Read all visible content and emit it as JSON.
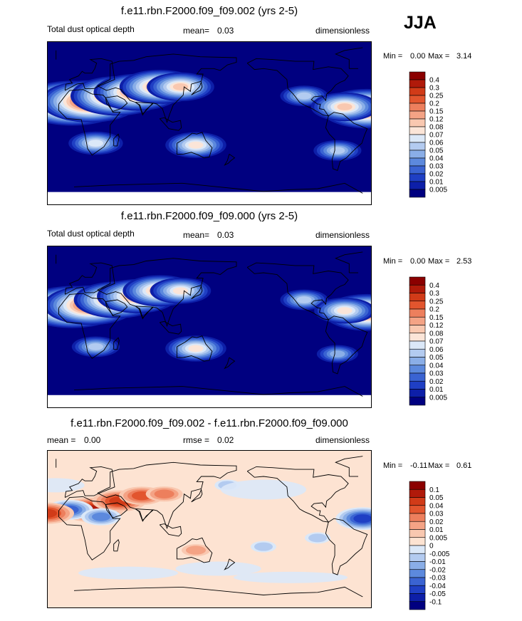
{
  "season": "JJA",
  "colors": {
    "ocean_background": "#000080",
    "diff_background": "#fde3d2",
    "coastline": "#000000"
  },
  "chart_data": [
    {
      "type": "heatmap",
      "title": "f.e11.rbn.F2000.f09_f09.002 (yrs 2-5)",
      "left_label": "Total dust optical depth",
      "mean_label": "mean=",
      "mean_value": "0.03",
      "units": "dimensionless",
      "min_label": "Min =",
      "min_value": "0.00",
      "max_label": "Max =",
      "max_value": "3.14",
      "colorbar": {
        "levels": [
          "0.4",
          "0.3",
          "0.25",
          "0.2",
          "0.15",
          "0.12",
          "0.08",
          "0.07",
          "0.06",
          "0.05",
          "0.04",
          "0.03",
          "0.02",
          "0.01",
          "0.005"
        ],
        "colors": [
          "#8b0000",
          "#b01a0a",
          "#d13b18",
          "#e2552e",
          "#ed7f5d",
          "#f4a385",
          "#f9c8b0",
          "#fbe5d8",
          "#dbe8f8",
          "#b3cbf0",
          "#8aaee7",
          "#5c89dd",
          "#3a63d2",
          "#1f3fc4",
          "#0d1fa8",
          "#000080"
        ]
      },
      "plumes": [
        {
          "lon": -2,
          "lat": 22,
          "level": 15
        },
        {
          "lon": 18,
          "lat": 24,
          "level": 14
        },
        {
          "lon": 48,
          "lat": 30,
          "level": 13
        },
        {
          "lon": 70,
          "lat": 34,
          "level": 12
        },
        {
          "lon": 95,
          "lat": 40,
          "level": 11
        },
        {
          "lon": 118,
          "lat": 40,
          "level": 9
        },
        {
          "lon": 135,
          "lat": -24,
          "level": 8
        },
        {
          "lon": 24,
          "lat": -22,
          "level": 7
        },
        {
          "lon": -105,
          "lat": 30,
          "level": 6
        },
        {
          "lon": -35,
          "lat": 16,
          "level": 13
        },
        {
          "lon": -60,
          "lat": 18,
          "level": 9
        },
        {
          "lon": -68,
          "lat": -30,
          "level": 6
        }
      ]
    },
    {
      "type": "heatmap",
      "title": "f.e11.rbn.F2000.f09_f09.000 (yrs 2-5)",
      "left_label": "Total dust optical depth",
      "mean_label": "mean=",
      "mean_value": "0.03",
      "units": "dimensionless",
      "min_label": "Min =",
      "min_value": "0.00",
      "max_label": "Max =",
      "max_value": "2.53",
      "colorbar": {
        "levels": [
          "0.4",
          "0.3",
          "0.25",
          "0.2",
          "0.15",
          "0.12",
          "0.08",
          "0.07",
          "0.06",
          "0.05",
          "0.04",
          "0.03",
          "0.02",
          "0.01",
          "0.005"
        ],
        "colors": [
          "#8b0000",
          "#b01a0a",
          "#d13b18",
          "#e2552e",
          "#ed7f5d",
          "#f4a385",
          "#f9c8b0",
          "#fbe5d8",
          "#dbe8f8",
          "#b3cbf0",
          "#8aaee7",
          "#5c89dd",
          "#3a63d2",
          "#1f3fc4",
          "#0d1fa8",
          "#000080"
        ]
      },
      "plumes": [
        {
          "lon": -2,
          "lat": 22,
          "level": 14
        },
        {
          "lon": 18,
          "lat": 24,
          "level": 13
        },
        {
          "lon": 48,
          "lat": 30,
          "level": 12
        },
        {
          "lon": 70,
          "lat": 34,
          "level": 11
        },
        {
          "lon": 95,
          "lat": 40,
          "level": 10
        },
        {
          "lon": 118,
          "lat": 40,
          "level": 8
        },
        {
          "lon": 135,
          "lat": -24,
          "level": 8
        },
        {
          "lon": 24,
          "lat": -22,
          "level": 6
        },
        {
          "lon": -105,
          "lat": 30,
          "level": 6
        },
        {
          "lon": -35,
          "lat": 16,
          "level": 12
        },
        {
          "lon": -60,
          "lat": 18,
          "level": 8
        },
        {
          "lon": -68,
          "lat": -30,
          "level": 5
        }
      ]
    },
    {
      "type": "heatmap",
      "title": "f.e11.rbn.F2000.f09_f09.002 - f.e11.rbn.F2000.f09_f09.000",
      "left_label": "mean =",
      "left_value": "0.00",
      "mean_label": "rmse =",
      "mean_value": "0.02",
      "units": "dimensionless",
      "min_label": "Min =",
      "min_value": "-0.11",
      "max_label": "Max =",
      "max_value": "0.61",
      "colorbar": {
        "levels": [
          "0.1",
          "0.05",
          "0.04",
          "0.03",
          "0.02",
          "0.01",
          "0.005",
          "0",
          "-0.005",
          "-0.01",
          "-0.02",
          "-0.03",
          "-0.04",
          "-0.05",
          "-0.1"
        ],
        "colors": [
          "#8b0000",
          "#b01a0a",
          "#d13b18",
          "#e2552e",
          "#ed7f5d",
          "#f4a385",
          "#f9c8b0",
          "#fde3d2",
          "#dbe8f8",
          "#b3cbf0",
          "#8aaee7",
          "#5c89dd",
          "#3a63d2",
          "#1f3fc4",
          "#0d1fa8",
          "#000080"
        ]
      },
      "plumes": [
        {
          "lon": 20,
          "lat": 22,
          "level": 13
        },
        {
          "lon": 50,
          "lat": 32,
          "level": 12
        },
        {
          "lon": 75,
          "lat": 38,
          "level": 11
        },
        {
          "lon": 100,
          "lat": 40,
          "level": 10
        },
        {
          "lon": -5,
          "lat": 22,
          "level": 3
        },
        {
          "lon": 30,
          "lat": 14,
          "level": 4
        },
        {
          "lon": -30,
          "lat": 18,
          "level": 12
        },
        {
          "lon": -40,
          "lat": 12,
          "level": 2
        },
        {
          "lon": 135,
          "lat": -24,
          "level": 9
        },
        {
          "lon": -150,
          "lat": -20,
          "level": 6
        },
        {
          "lon": 170,
          "lat": 50,
          "level": 6
        },
        {
          "lon": -90,
          "lat": -10,
          "level": 6
        }
      ]
    }
  ]
}
